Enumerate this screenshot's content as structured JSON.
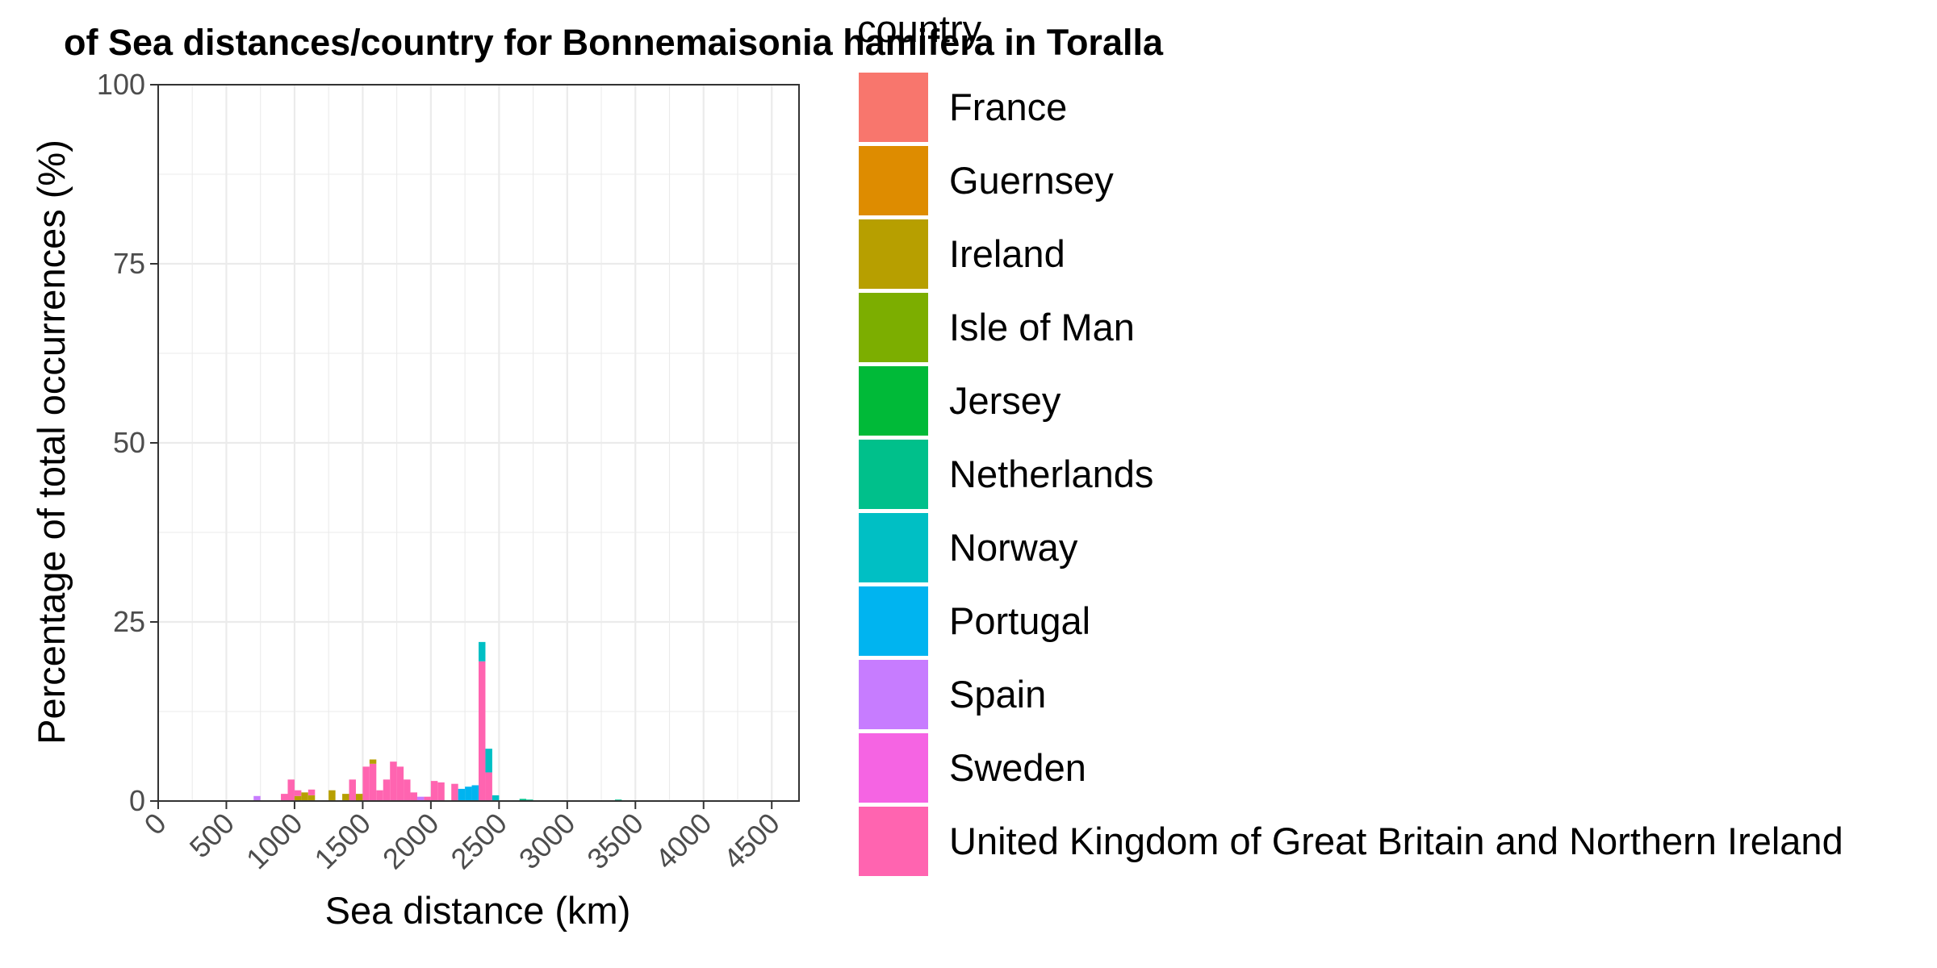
{
  "chart_data": {
    "type": "bar",
    "stacked": true,
    "title": "of Sea distances/country for Bonnemaisonia hamifera in Toralla",
    "xlabel": "Sea distance (km)",
    "ylabel": "Percentage of total occurrences (%)",
    "xlim": [
      0,
      4700
    ],
    "ylim": [
      0,
      100
    ],
    "x_ticks": [
      0,
      500,
      1000,
      1500,
      2000,
      2500,
      3000,
      3500,
      4000,
      4500
    ],
    "y_ticks": [
      0,
      25,
      50,
      75,
      100
    ],
    "grid": true,
    "bin_width": 50,
    "legend": {
      "title": "country",
      "placement": "right",
      "entries": [
        {
          "name": "France",
          "color": "#F8766D"
        },
        {
          "name": "Guernsey",
          "color": "#DE8C00"
        },
        {
          "name": "Ireland",
          "color": "#B79F00"
        },
        {
          "name": "Isle of Man",
          "color": "#7CAE00"
        },
        {
          "name": "Jersey",
          "color": "#00BA38"
        },
        {
          "name": "Netherlands",
          "color": "#00C08B"
        },
        {
          "name": "Norway",
          "color": "#00BFC4"
        },
        {
          "name": "Portugal",
          "color": "#00B4F0"
        },
        {
          "name": "Spain",
          "color": "#C77CFF"
        },
        {
          "name": "Sweden",
          "color": "#F564E3"
        },
        {
          "name": "United Kingdom of Great Britain and Northern Ireland",
          "color": "#FF64B0"
        }
      ]
    },
    "bins": [
      {
        "x0": 700,
        "segments": [
          {
            "country": "Spain",
            "value": 0.7
          }
        ]
      },
      {
        "x0": 900,
        "segments": [
          {
            "country": "United Kingdom of Great Britain and Northern Ireland",
            "value": 1.0
          }
        ]
      },
      {
        "x0": 950,
        "segments": [
          {
            "country": "United Kingdom of Great Britain and Northern Ireland",
            "value": 3.0
          }
        ]
      },
      {
        "x0": 1000,
        "segments": [
          {
            "country": "Ireland",
            "value": 0.7
          },
          {
            "country": "United Kingdom of Great Britain and Northern Ireland",
            "value": 0.8
          }
        ]
      },
      {
        "x0": 1050,
        "segments": [
          {
            "country": "Ireland",
            "value": 1.2
          }
        ]
      },
      {
        "x0": 1100,
        "segments": [
          {
            "country": "Ireland",
            "value": 0.8
          },
          {
            "country": "United Kingdom of Great Britain and Northern Ireland",
            "value": 0.8
          }
        ]
      },
      {
        "x0": 1250,
        "segments": [
          {
            "country": "Ireland",
            "value": 1.5
          }
        ]
      },
      {
        "x0": 1350,
        "segments": [
          {
            "country": "Ireland",
            "value": 1.0
          }
        ]
      },
      {
        "x0": 1400,
        "segments": [
          {
            "country": "United Kingdom of Great Britain and Northern Ireland",
            "value": 3.0
          }
        ]
      },
      {
        "x0": 1450,
        "segments": [
          {
            "country": "Ireland",
            "value": 1.0
          }
        ]
      },
      {
        "x0": 1500,
        "segments": [
          {
            "country": "United Kingdom of Great Britain and Northern Ireland",
            "value": 4.8
          }
        ]
      },
      {
        "x0": 1550,
        "segments": [
          {
            "country": "United Kingdom of Great Britain and Northern Ireland",
            "value": 5.2
          },
          {
            "country": "Ireland",
            "value": 0.6
          }
        ]
      },
      {
        "x0": 1600,
        "segments": [
          {
            "country": "United Kingdom of Great Britain and Northern Ireland",
            "value": 1.5
          }
        ]
      },
      {
        "x0": 1650,
        "segments": [
          {
            "country": "United Kingdom of Great Britain and Northern Ireland",
            "value": 3.0
          }
        ]
      },
      {
        "x0": 1700,
        "segments": [
          {
            "country": "United Kingdom of Great Britain and Northern Ireland",
            "value": 5.5
          }
        ]
      },
      {
        "x0": 1750,
        "segments": [
          {
            "country": "United Kingdom of Great Britain and Northern Ireland",
            "value": 4.8
          }
        ]
      },
      {
        "x0": 1800,
        "segments": [
          {
            "country": "United Kingdom of Great Britain and Northern Ireland",
            "value": 3.0
          }
        ]
      },
      {
        "x0": 1850,
        "segments": [
          {
            "country": "United Kingdom of Great Britain and Northern Ireland",
            "value": 1.2
          }
        ]
      },
      {
        "x0": 1900,
        "segments": [
          {
            "country": "Spain",
            "value": 0.6
          }
        ]
      },
      {
        "x0": 1950,
        "segments": [
          {
            "country": "United Kingdom of Great Britain and Northern Ireland",
            "value": 0.6
          }
        ]
      },
      {
        "x0": 2000,
        "segments": [
          {
            "country": "United Kingdom of Great Britain and Northern Ireland",
            "value": 2.8
          }
        ]
      },
      {
        "x0": 2050,
        "segments": [
          {
            "country": "United Kingdom of Great Britain and Northern Ireland",
            "value": 2.6
          }
        ]
      },
      {
        "x0": 2150,
        "segments": [
          {
            "country": "United Kingdom of Great Britain and Northern Ireland",
            "value": 2.4
          }
        ]
      },
      {
        "x0": 2200,
        "segments": [
          {
            "country": "Portugal",
            "value": 1.7
          }
        ]
      },
      {
        "x0": 2250,
        "segments": [
          {
            "country": "Portugal",
            "value": 2.0
          }
        ]
      },
      {
        "x0": 2300,
        "segments": [
          {
            "country": "Portugal",
            "value": 2.2
          }
        ]
      },
      {
        "x0": 2350,
        "segments": [
          {
            "country": "United Kingdom of Great Britain and Northern Ireland",
            "value": 19.5
          },
          {
            "country": "Norway",
            "value": 2.7
          }
        ]
      },
      {
        "x0": 2400,
        "segments": [
          {
            "country": "United Kingdom of Great Britain and Northern Ireland",
            "value": 4.0
          },
          {
            "country": "Norway",
            "value": 3.3
          }
        ]
      },
      {
        "x0": 2450,
        "segments": [
          {
            "country": "Norway",
            "value": 0.8
          }
        ]
      },
      {
        "x0": 2650,
        "segments": [
          {
            "country": "Netherlands",
            "value": 0.3
          }
        ]
      },
      {
        "x0": 2700,
        "segments": [
          {
            "country": "Netherlands",
            "value": 0.2
          }
        ]
      },
      {
        "x0": 3350,
        "segments": [
          {
            "country": "Netherlands",
            "value": 0.2
          }
        ]
      }
    ]
  }
}
